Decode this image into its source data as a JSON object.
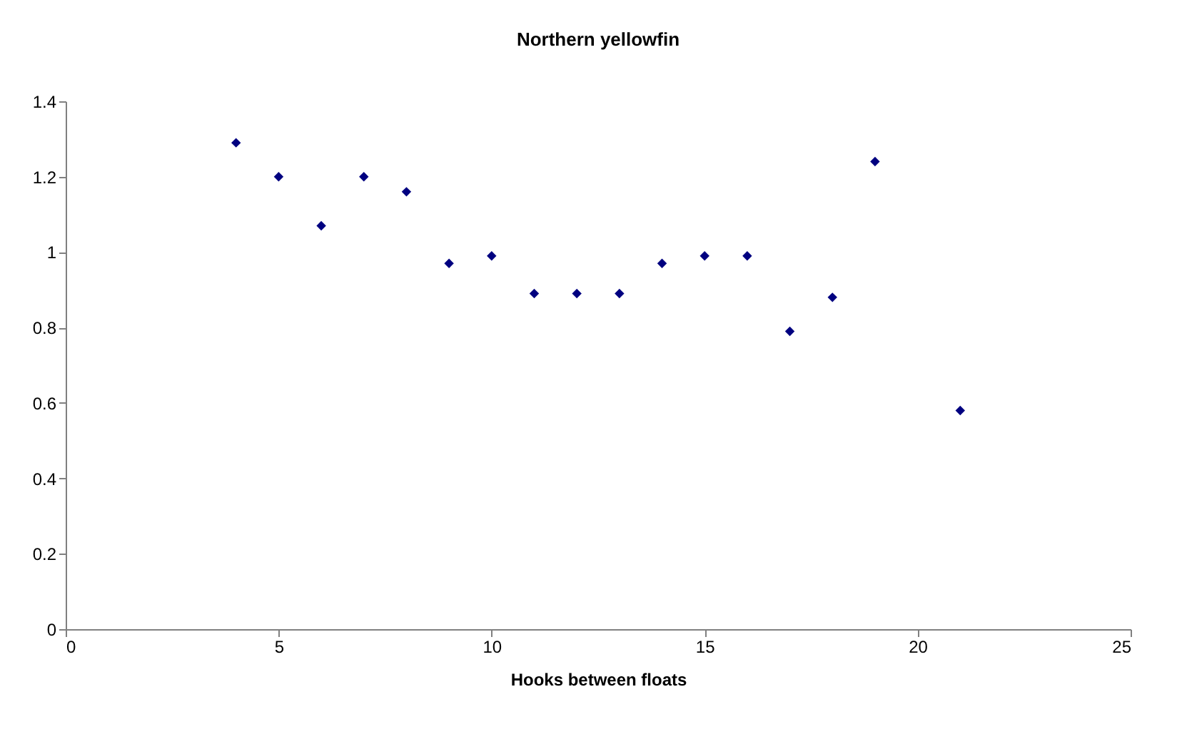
{
  "chart_data": {
    "type": "scatter",
    "title": "Northern yellowfin",
    "xlabel": "Hooks between floats",
    "x": [
      4,
      5,
      6,
      7,
      8,
      9,
      10,
      11,
      12,
      13,
      14,
      15,
      16,
      17,
      18,
      19,
      21
    ],
    "series": [
      {
        "color": "#000080",
        "values": [
          1.29,
          1.2,
          1.07,
          1.2,
          1.16,
          0.97,
          0.99,
          0.89,
          0.89,
          0.89,
          0.97,
          0.99,
          0.99,
          0.79,
          0.88,
          1.24,
          0.58
        ]
      }
    ],
    "xlim": [
      0,
      25
    ],
    "xticks": [
      0,
      5,
      10,
      15,
      20,
      25
    ],
    "ylim": [
      0,
      1.4
    ],
    "yticks": [
      0,
      0.2,
      0.4,
      0.6,
      0.8,
      1,
      1.2,
      1.4
    ],
    "grid": false,
    "marker": "diamond"
  }
}
